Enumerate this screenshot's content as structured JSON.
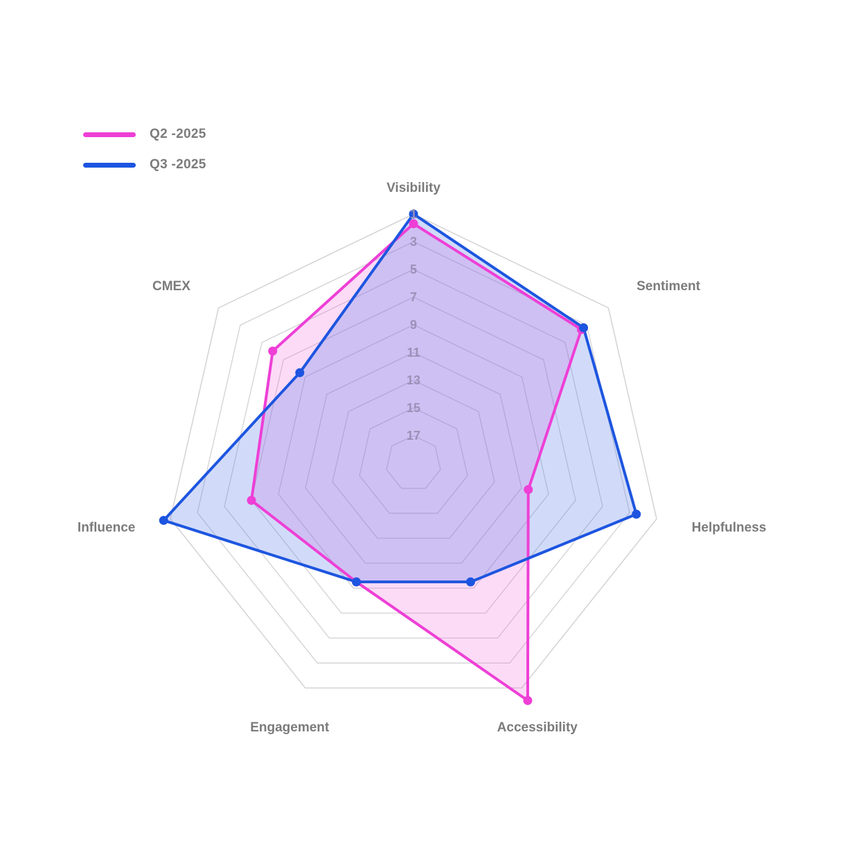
{
  "chart_data": {
    "type": "radar",
    "axes": [
      "Visibility",
      "Sentiment",
      "Helpfulness",
      "Accessibility",
      "Engagement",
      "Influence",
      "CMEX"
    ],
    "scale": {
      "min": 1,
      "max": 19,
      "reversed": true,
      "ticks": [
        1,
        3,
        5,
        7,
        9,
        11,
        13,
        15,
        17
      ]
    },
    "series": [
      {
        "name": "Q2 -2025",
        "color": "#ee3fd6",
        "fill": "rgba(240,90,220,0.22)",
        "values": [
          1.7,
          3.5,
          10.5,
          0,
          9.5,
          7,
          6
        ]
      },
      {
        "name": "Q3 -2025",
        "color": "#1d55e0",
        "fill": "rgba(70,110,230,0.25)",
        "values": [
          1,
          3.3,
          2.5,
          9.5,
          9.5,
          0.5,
          8.5
        ]
      }
    ],
    "legend_position": "top-left",
    "grid": true
  }
}
